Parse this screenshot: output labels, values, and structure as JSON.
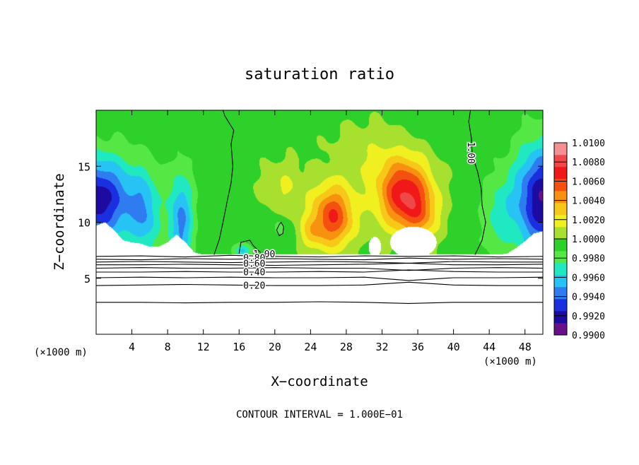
{
  "chart_data": {
    "type": "heatmap",
    "title": "saturation ratio",
    "xlabel": "X−coordinate",
    "ylabel": "Z−coordinate",
    "x_unit_left": "(×1000 m)",
    "x_unit_right": "(×1000 m)",
    "footer": "CONTOUR INTERVAL = 1.000E−01",
    "xlim": [
      0,
      50
    ],
    "ylim": [
      0,
      20
    ],
    "x_ticks": [
      {
        "value": 4,
        "label": "4"
      },
      {
        "value": 8,
        "label": "8"
      },
      {
        "value": 12,
        "label": "12"
      },
      {
        "value": 16,
        "label": "16"
      },
      {
        "value": 20,
        "label": "20"
      },
      {
        "value": 24,
        "label": "24"
      },
      {
        "value": 28,
        "label": "28"
      },
      {
        "value": 32,
        "label": "32"
      },
      {
        "value": 36,
        "label": "36"
      },
      {
        "value": 40,
        "label": "40"
      },
      {
        "value": 44,
        "label": "44"
      },
      {
        "value": 48,
        "label": "48"
      }
    ],
    "y_ticks": [
      {
        "value": 5,
        "label": "5"
      },
      {
        "value": 10,
        "label": "10"
      },
      {
        "value": 15,
        "label": "15"
      }
    ],
    "colorbar": {
      "min": 0.99,
      "max": 1.01,
      "colors": [
        "#6a0f8a",
        "#1d0aa0",
        "#1a2fe0",
        "#2f7cf0",
        "#27c3f5",
        "#20e8c0",
        "#55e845",
        "#2ed12a",
        "#a8e030",
        "#f0f020",
        "#f7c818",
        "#f89010",
        "#f45010",
        "#f01818",
        "#f04848",
        "#f59090"
      ],
      "ticks": [
        {
          "value": 0.99,
          "label": "0.9900"
        },
        {
          "value": 0.992,
          "label": "0.9920"
        },
        {
          "value": 0.994,
          "label": "0.9940"
        },
        {
          "value": 0.996,
          "label": "0.9960"
        },
        {
          "value": 0.998,
          "label": "0.9980"
        },
        {
          "value": 1.0,
          "label": "1.0000"
        },
        {
          "value": 1.002,
          "label": "1.0020"
        },
        {
          "value": 1.004,
          "label": "1.0040"
        },
        {
          "value": 1.006,
          "label": "1.0060"
        },
        {
          "value": 1.008,
          "label": "1.0080"
        },
        {
          "value": 1.01,
          "label": "1.0100"
        }
      ]
    },
    "field": {
      "background": 0.9995,
      "cloud_base_z": 7.1,
      "boundary_z": [
        [
          0,
          9.7
        ],
        [
          1,
          10.0
        ],
        [
          2,
          9.3
        ],
        [
          3,
          8.4
        ],
        [
          4,
          8.2
        ],
        [
          5,
          8.1
        ],
        [
          6,
          7.8
        ],
        [
          7,
          7.8
        ],
        [
          8,
          8.2
        ],
        [
          9,
          8.9
        ],
        [
          10,
          8.2
        ],
        [
          11,
          7.3
        ],
        [
          12,
          7.1
        ],
        [
          41,
          7.1
        ],
        [
          42,
          7.1
        ],
        [
          43,
          7.1
        ],
        [
          44,
          7.1
        ],
        [
          45,
          7.1
        ],
        [
          46,
          7.2
        ],
        [
          47,
          7.7
        ],
        [
          48,
          8.3
        ],
        [
          49,
          9.0
        ],
        [
          50,
          9.2
        ]
      ],
      "features": [
        {
          "x": 34.5,
          "z": 12.5,
          "sx": 3.0,
          "sz": 3.2,
          "a": 0.0078
        },
        {
          "x": 36.5,
          "z": 10.5,
          "sx": 2.0,
          "sz": 2.2,
          "a": 0.0025
        },
        {
          "x": 26.5,
          "z": 10.5,
          "sx": 2.4,
          "sz": 2.8,
          "a": 0.0068
        },
        {
          "x": 24.0,
          "z": 9.0,
          "sx": 1.3,
          "sz": 1.5,
          "a": 0.0022
        },
        {
          "x": 21.0,
          "z": 13.0,
          "sx": 2.5,
          "sz": 2.5,
          "a": 0.0018
        },
        {
          "x": 30.0,
          "z": 16.0,
          "sx": 4.0,
          "sz": 3.0,
          "a": 0.0014
        },
        {
          "x": 20.5,
          "z": 9.5,
          "sx": 0.8,
          "sz": 1.0,
          "a": -0.0016
        },
        {
          "x": 16.5,
          "z": 7.5,
          "sx": 1.0,
          "sz": 0.6,
          "a": -0.0035
        },
        {
          "x": 0.0,
          "z": 12.0,
          "sx": 4.5,
          "sz": 3.8,
          "a": -0.0078
        },
        {
          "x": 9.5,
          "z": 10.0,
          "sx": 1.4,
          "sz": 4.5,
          "a": -0.0048
        },
        {
          "x": 5.5,
          "z": 10.5,
          "sx": 1.6,
          "sz": 4.0,
          "a": -0.0032
        },
        {
          "x": 50.0,
          "z": 12.0,
          "sx": 3.2,
          "sz": 4.8,
          "a": -0.0082
        },
        {
          "x": 45.0,
          "z": 10.5,
          "sx": 1.8,
          "sz": 3.5,
          "a": -0.0022
        }
      ],
      "saturated_gaps": [
        {
          "x": 35.5,
          "z": 8.2,
          "sx": 2.6,
          "sz": 1.4
        },
        {
          "x": 31.2,
          "z": 7.8,
          "sx": 0.7,
          "sz": 0.9
        }
      ]
    },
    "contours": {
      "upper": [
        {
          "level": 1.0,
          "label": "1.00",
          "points": [
            [
              13.2,
              7.1
            ],
            [
              13.8,
              8.5
            ],
            [
              14.2,
              10
            ],
            [
              14.7,
              12
            ],
            [
              15.1,
              13.5
            ],
            [
              15.3,
              15
            ],
            [
              15.1,
              17
            ],
            [
              15.4,
              18.2
            ],
            [
              14.4,
              19.5
            ],
            [
              14.2,
              20
            ]
          ]
        },
        {
          "level": 1.0,
          "label": "1.00",
          "points": [
            [
              42.4,
              7.1
            ],
            [
              43.2,
              8.4
            ],
            [
              43.6,
              10
            ],
            [
              43.2,
              11.5
            ],
            [
              43.1,
              13
            ],
            [
              42.7,
              14.5
            ],
            [
              42.1,
              16
            ],
            [
              42.0,
              17.5
            ],
            [
              41.7,
              19
            ],
            [
              41.9,
              20
            ]
          ]
        },
        {
          "level": 1.0,
          "label": "1.00",
          "points": [
            [
              16.0,
              7.2
            ],
            [
              16.2,
              8.2
            ],
            [
              17.2,
              8.4
            ],
            [
              17.6,
              7.9
            ],
            [
              18.4,
              7.3
            ]
          ]
        },
        {
          "level": 1.0,
          "label": "",
          "points": [
            [
              20.5,
              9.8
            ],
            [
              20.2,
              9.3
            ],
            [
              20.5,
              8.8
            ],
            [
              20.9,
              9.0
            ],
            [
              21.0,
              9.6
            ],
            [
              20.7,
              10.0
            ],
            [
              20.5,
              9.8
            ]
          ]
        }
      ],
      "lower": [
        {
          "level": 0.9,
          "label": "",
          "z": 6.95,
          "offsets": [
            0,
            0.05,
            -0.05,
            0.1,
            0,
            -0.05,
            0.05,
            0,
            0.05,
            -0.05,
            0
          ]
        },
        {
          "level": 0.8,
          "label": "0.80",
          "z": 6.7,
          "offsets": [
            0,
            -0.05,
            0.05,
            0,
            0.05,
            0,
            -0.05,
            0.1,
            0,
            0.05,
            0
          ]
        },
        {
          "level": 0.7,
          "label": "",
          "z": 6.45,
          "offsets": [
            0,
            0.05,
            0,
            -0.05,
            0,
            0.05,
            0,
            -0.1,
            0.05,
            0,
            0
          ]
        },
        {
          "level": 0.6,
          "label": "0.60",
          "z": 6.2,
          "offsets": [
            0,
            0,
            0.05,
            0,
            -0.05,
            0,
            0.05,
            0.15,
            0,
            0,
            0.05
          ]
        },
        {
          "level": 0.5,
          "label": "",
          "z": 5.9,
          "offsets": [
            0,
            0.05,
            0,
            0,
            0.05,
            0,
            0,
            -0.2,
            0,
            0.05,
            0
          ]
        },
        {
          "level": 0.4,
          "label": "0.40",
          "z": 5.55,
          "offsets": [
            0,
            0,
            0.05,
            0,
            0,
            0.05,
            0,
            0.2,
            0.05,
            0,
            0
          ]
        },
        {
          "level": 0.3,
          "label": "",
          "z": 5.05,
          "offsets": [
            0,
            0.05,
            0,
            0.05,
            0,
            0,
            0.05,
            -0.25,
            0,
            0,
            0.05
          ]
        },
        {
          "level": 0.2,
          "label": "0.20",
          "z": 4.35,
          "offsets": [
            0,
            0.05,
            0.1,
            0.05,
            0,
            0,
            0.05,
            0.3,
            0.05,
            0,
            0
          ]
        },
        {
          "level": 0.1,
          "label": "",
          "z": 2.85,
          "offsets": [
            0,
            0,
            -0.05,
            0,
            0,
            0.05,
            0,
            -0.1,
            0,
            0,
            0
          ]
        }
      ],
      "label_positions": [
        {
          "level": 1.0,
          "x": 41.9,
          "z": 16.2,
          "rotate": 90,
          "text": "1.00"
        },
        {
          "level": 1.0,
          "x": 18.8,
          "z": 7.1,
          "rotate": 0,
          "text": "1.00"
        },
        {
          "level": 0.8,
          "x": 17.7,
          "z": 6.75,
          "rotate": 0,
          "text": "0.80"
        },
        {
          "level": 0.6,
          "x": 17.7,
          "z": 6.25,
          "rotate": 0,
          "text": "0.60"
        },
        {
          "level": 0.4,
          "x": 17.7,
          "z": 5.5,
          "rotate": 0,
          "text": "0.40"
        },
        {
          "level": 0.2,
          "x": 17.7,
          "z": 4.3,
          "rotate": 0,
          "text": "0.20"
        }
      ]
    }
  }
}
